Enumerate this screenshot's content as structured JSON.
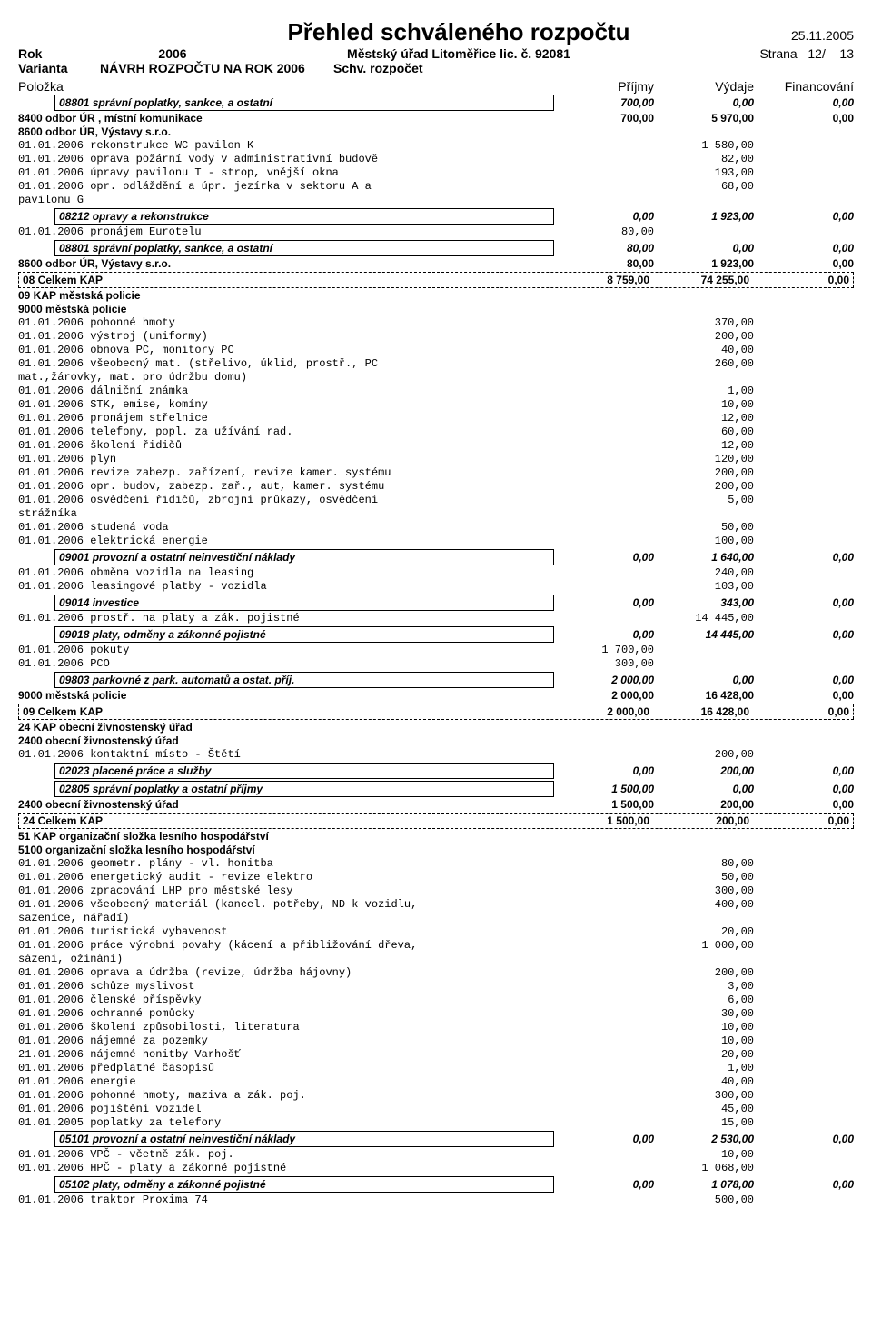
{
  "header": {
    "title": "Přehled schváleného rozpočtu",
    "date": "25.11.2005",
    "page_label": "Strana",
    "page_current": "12/",
    "page_total": "13",
    "rok_label": "Rok",
    "rok_value": "2006",
    "sub": "Městský úřad Litoměřice lic. č. 92081",
    "varianta_label": "Varianta",
    "varianta_value": "NÁVRH ROZPOČTU NA ROK 2006",
    "schv": "Schv. rozpočet",
    "polozka": "Položka",
    "col_prijmy": "Příjmy",
    "col_vydaje": "Výdaje",
    "col_fin": "Financování"
  },
  "lines": [
    {
      "type": "box",
      "indent": 2,
      "label": "08801  správní poplatky, sankce, a ostatní",
      "c2": "700,00",
      "c3": "0,00",
      "c4": "0,00",
      "style": "bi"
    },
    {
      "type": "row",
      "indent": 1,
      "label": "8400  odbor ÚR , místní komunikace",
      "c2": "700,00",
      "c3": "5 970,00",
      "c4": "0,00",
      "style": "b"
    },
    {
      "type": "row",
      "indent": 1,
      "label": "8600  odbor ÚR, Výstavy s.r.o.",
      "style": "b"
    },
    {
      "type": "mono",
      "label": "01.01.2006  rekonstrukce WC pavilon K",
      "c3": "1 580,00"
    },
    {
      "type": "mono",
      "label": "01.01.2006  oprava požární vody v administrativní budově",
      "c3": "82,00"
    },
    {
      "type": "mono",
      "label": "01.01.2006  úpravy pavilonu T - strop, vnější okna",
      "c3": "193,00"
    },
    {
      "type": "mono",
      "label": "01.01.2006  opr. odláždění a úpr. jezírka v sektoru A a",
      "c3": "68,00"
    },
    {
      "type": "mono",
      "label": "pavilonu G"
    },
    {
      "type": "box",
      "indent": 2,
      "label": "08212  opravy a rekonstrukce",
      "c2": "0,00",
      "c3": "1 923,00",
      "c4": "0,00",
      "style": "bi"
    },
    {
      "type": "mono",
      "label": "01.01.2006  pronájem Eurotelu",
      "c2": "80,00"
    },
    {
      "type": "box",
      "indent": 2,
      "label": "08801  správní poplatky, sankce, a ostatní",
      "c2": "80,00",
      "c3": "0,00",
      "c4": "0,00",
      "style": "bi"
    },
    {
      "type": "row",
      "indent": 1,
      "label": "8600  odbor ÚR, Výstavy s.r.o.",
      "c2": "80,00",
      "c3": "1 923,00",
      "c4": "0,00",
      "style": "b"
    },
    {
      "type": "dashed",
      "label": "08      Celkem KAP",
      "c2": "8 759,00",
      "c3": "74 255,00",
      "c4": "0,00",
      "style": "b"
    },
    {
      "type": "row",
      "indent": 0,
      "label": "09    KAP          městská policie",
      "style": "b"
    },
    {
      "type": "row",
      "indent": 1,
      "label": "9000  městská policie",
      "style": "b"
    },
    {
      "type": "mono",
      "label": "01.01.2006  pohonné hmoty",
      "c3": "370,00"
    },
    {
      "type": "mono",
      "label": "01.01.2006  výstroj (uniformy)",
      "c3": "200,00"
    },
    {
      "type": "mono",
      "label": "01.01.2006  obnova PC, monitory PC",
      "c3": "40,00"
    },
    {
      "type": "mono",
      "label": "01.01.2006  všeobecný mat. (střelivo, úklid, prostř., PC",
      "c3": "260,00"
    },
    {
      "type": "mono",
      "label": "mat.,žárovky, mat. pro údržbu domu)"
    },
    {
      "type": "mono",
      "label": "01.01.2006  dálniční známka",
      "c3": "1,00"
    },
    {
      "type": "mono",
      "label": "01.01.2006  STK, emise, komíny",
      "c3": "10,00"
    },
    {
      "type": "mono",
      "label": "01.01.2006  pronájem střelnice",
      "c3": "12,00"
    },
    {
      "type": "mono",
      "label": "01.01.2006  telefony, popl. za užívání rad.",
      "c3": "60,00"
    },
    {
      "type": "mono",
      "label": "01.01.2006  školení řidičů",
      "c3": "12,00"
    },
    {
      "type": "mono",
      "label": "01.01.2006  plyn",
      "c3": "120,00"
    },
    {
      "type": "mono",
      "label": "01.01.2006  revize zabezp. zařízení, revize kamer. systému",
      "c3": "200,00"
    },
    {
      "type": "mono",
      "label": "01.01.2006  opr. budov, zabezp. zař., aut, kamer. systému",
      "c3": "200,00"
    },
    {
      "type": "mono",
      "label": "01.01.2006  osvědčení řidičů, zbrojní průkazy, osvědčení",
      "c3": "5,00"
    },
    {
      "type": "mono",
      "label": "strážníka"
    },
    {
      "type": "mono",
      "label": "01.01.2006  studená voda",
      "c3": "50,00"
    },
    {
      "type": "mono",
      "label": "01.01.2006  elektrická energie",
      "c3": "100,00"
    },
    {
      "type": "box",
      "indent": 2,
      "label": "09001  provozní a ostatní neinvestiční náklady",
      "c2": "0,00",
      "c3": "1 640,00",
      "c4": "0,00",
      "style": "bi"
    },
    {
      "type": "mono",
      "label": "01.01.2006  obměna vozidla na leasing",
      "c3": "240,00"
    },
    {
      "type": "mono",
      "label": "01.01.2006  leasingové platby - vozidla",
      "c3": "103,00"
    },
    {
      "type": "box",
      "indent": 2,
      "label": "09014  investice",
      "c2": "0,00",
      "c3": "343,00",
      "c4": "0,00",
      "style": "bi"
    },
    {
      "type": "mono",
      "label": "01.01.2006  prostř. na platy a zák. pojistné",
      "c3": "14 445,00"
    },
    {
      "type": "box",
      "indent": 2,
      "label": "09018  platy, odměny a zákonné pojistné",
      "c2": "0,00",
      "c3": "14 445,00",
      "c4": "0,00",
      "style": "bi"
    },
    {
      "type": "mono",
      "label": "01.01.2006  pokuty",
      "c2": "1 700,00"
    },
    {
      "type": "mono",
      "label": "01.01.2006  PCO",
      "c2": "300,00"
    },
    {
      "type": "box",
      "indent": 2,
      "label": "09803  parkovné z park. automatů a ostat. příj.",
      "c2": "2 000,00",
      "c3": "0,00",
      "c4": "0,00",
      "style": "bi"
    },
    {
      "type": "row",
      "indent": 1,
      "label": "9000  městská policie",
      "c2": "2 000,00",
      "c3": "16 428,00",
      "c4": "0,00",
      "style": "b"
    },
    {
      "type": "dashed",
      "label": "09      Celkem KAP",
      "c2": "2 000,00",
      "c3": "16 428,00",
      "c4": "0,00",
      "style": "b"
    },
    {
      "type": "row",
      "indent": 0,
      "label": "24    KAP          obecní živnostenský úřad",
      "style": "b"
    },
    {
      "type": "row",
      "indent": 1,
      "label": "2400  obecní živnostenský úřad",
      "style": "b"
    },
    {
      "type": "mono",
      "label": "01.01.2006  kontaktní místo - Štětí",
      "c3": "200,00"
    },
    {
      "type": "box",
      "indent": 2,
      "label": "02023  placené práce a služby",
      "c2": "0,00",
      "c3": "200,00",
      "c4": "0,00",
      "style": "bi"
    },
    {
      "type": "box",
      "indent": 2,
      "label": "02805  správní poplatky a ostatní příjmy",
      "c2": "1 500,00",
      "c3": "0,00",
      "c4": "0,00",
      "style": "bi"
    },
    {
      "type": "row",
      "indent": 1,
      "label": "2400  obecní živnostenský úřad",
      "c2": "1 500,00",
      "c3": "200,00",
      "c4": "0,00",
      "style": "b"
    },
    {
      "type": "dashed",
      "label": "24      Celkem KAP",
      "c2": "1 500,00",
      "c3": "200,00",
      "c4": "0,00",
      "style": "b"
    },
    {
      "type": "row",
      "indent": 0,
      "label": "51    KAP          organizační složka lesního hospodářství",
      "style": "b"
    },
    {
      "type": "row",
      "indent": 1,
      "label": "5100  organizační složka lesního hospodářství",
      "style": "b"
    },
    {
      "type": "mono",
      "label": "01.01.2006  geometr. plány - vl. honitba",
      "c3": "80,00"
    },
    {
      "type": "mono",
      "label": "01.01.2006  energetický audit - revize elektro",
      "c3": "50,00"
    },
    {
      "type": "mono",
      "label": "01.01.2006  zpracování LHP pro městské lesy",
      "c3": "300,00"
    },
    {
      "type": "mono",
      "label": "01.01.2006  všeobecný materiál (kancel. potřeby, ND k vozidlu,",
      "c3": "400,00"
    },
    {
      "type": "mono",
      "label": "sazenice, nářadí)"
    },
    {
      "type": "mono",
      "label": "01.01.2006  turistická vybavenost",
      "c3": "20,00"
    },
    {
      "type": "mono",
      "label": "01.01.2006  práce výrobní povahy (kácení a přibližování dřeva,",
      "c3": "1 000,00"
    },
    {
      "type": "mono",
      "label": "sázení, ožínání)"
    },
    {
      "type": "mono",
      "label": "01.01.2006  oprava a údržba (revize, údržba hájovny)",
      "c3": "200,00"
    },
    {
      "type": "mono",
      "label": "01.01.2006  schůze myslivost",
      "c3": "3,00"
    },
    {
      "type": "mono",
      "label": "01.01.2006  členské příspěvky",
      "c3": "6,00"
    },
    {
      "type": "mono",
      "label": "01.01.2006  ochranné pomůcky",
      "c3": "30,00"
    },
    {
      "type": "mono",
      "label": "01.01.2006  školení způsobilosti, literatura",
      "c3": "10,00"
    },
    {
      "type": "mono",
      "label": "01.01.2006  nájemné za pozemky",
      "c3": "10,00"
    },
    {
      "type": "mono",
      "label": "21.01.2006  nájemné honitby Varhošť",
      "c3": "20,00"
    },
    {
      "type": "mono",
      "label": "01.01.2006  předplatné časopisů",
      "c3": "1,00"
    },
    {
      "type": "mono",
      "label": "01.01.2006  energie",
      "c3": "40,00"
    },
    {
      "type": "mono",
      "label": "01.01.2006  pohonné hmoty, maziva a zák. poj.",
      "c3": "300,00"
    },
    {
      "type": "mono",
      "label": "01.01.2006  pojištění vozidel",
      "c3": "45,00"
    },
    {
      "type": "mono",
      "label": "01.01.2005  poplatky za telefony",
      "c3": "15,00"
    },
    {
      "type": "box",
      "indent": 2,
      "label": "05101  provozní a ostatní neinvestiční náklady",
      "c2": "0,00",
      "c3": "2 530,00",
      "c4": "0,00",
      "style": "bi"
    },
    {
      "type": "mono",
      "label": "01.01.2006  VPČ - včetně zák. poj.",
      "c3": "10,00"
    },
    {
      "type": "mono",
      "label": "01.01.2006  HPČ - platy a zákonné pojistné",
      "c3": "1 068,00"
    },
    {
      "type": "box",
      "indent": 2,
      "label": "05102  platy, odměny a zákonné pojistné",
      "c2": "0,00",
      "c3": "1 078,00",
      "c4": "0,00",
      "style": "bi"
    },
    {
      "type": "mono",
      "label": "01.01.2006  traktor Proxima 74",
      "c3": "500,00"
    }
  ]
}
